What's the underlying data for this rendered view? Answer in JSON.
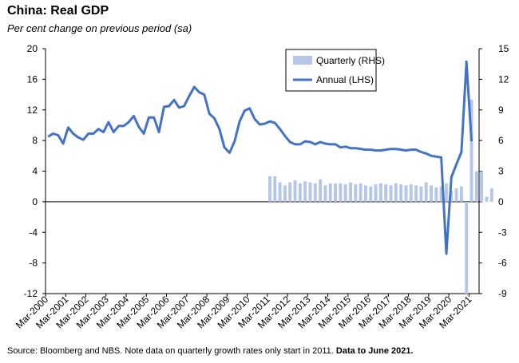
{
  "title": "China: Real GDP",
  "subtitle": "Per cent change on previous period (sa)",
  "source_text": "Source: Bloomberg and NBS.  Note data on quarterly growth rates only start in 2011.",
  "source_bold": "Data to June 2021.",
  "colors": {
    "annual": "#4472C4",
    "quarterly": "#B4C7E7"
  },
  "chart_data": {
    "type": "bar+line",
    "title": "China: Real GDP",
    "subtitle": "Per cent change on previous period (sa)",
    "x_tick_labels": [
      "Mar-2000",
      "Mar-2001",
      "Mar-2002",
      "Mar-2003",
      "Mar-2004",
      "Mar-2005",
      "Mar-2006",
      "Mar-2007",
      "Mar-2008",
      "Mar-2009",
      "Mar-2010",
      "Mar-2011",
      "Mar-2012",
      "Mar-2013",
      "Mar-2014",
      "Mar-2015",
      "Mar-2016",
      "Mar-2017",
      "Mar-2018",
      "Mar-2019",
      "Mar-2020",
      "Mar-2021"
    ],
    "y_left": {
      "min": -12,
      "max": 20,
      "step": 4,
      "ticks": [
        "-12",
        "-8",
        "-4",
        "0",
        "4",
        "8",
        "12",
        "16",
        "20"
      ]
    },
    "y_right": {
      "min": -9,
      "max": 15,
      "step": 3,
      "ticks": [
        "-9",
        "-6",
        "-3",
        "0",
        "3",
        "6",
        "9",
        "12",
        "15"
      ]
    },
    "legend": {
      "position": "top-center",
      "entries": [
        "Quarterly (RHS)",
        "Annual (LHS)"
      ]
    },
    "grid": false,
    "series": [
      {
        "name": "Annual (LHS)",
        "axis": "left",
        "kind": "line",
        "start": "2000Q1",
        "values": [
          8.5,
          8.9,
          8.7,
          7.6,
          9.7,
          8.9,
          8.4,
          8.1,
          8.9,
          8.9,
          9.5,
          9.1,
          10.4,
          9.1,
          9.9,
          9.9,
          10.4,
          11.2,
          9.8,
          8.9,
          11.0,
          11.0,
          9.1,
          12.4,
          12.5,
          13.3,
          12.3,
          12.5,
          13.8,
          15.0,
          14.3,
          14.0,
          11.5,
          10.9,
          9.5,
          7.1,
          6.4,
          7.9,
          10.5,
          11.9,
          12.2,
          10.8,
          10.1,
          10.2,
          10.5,
          10.3,
          9.5,
          8.6,
          7.8,
          7.5,
          7.5,
          7.9,
          7.8,
          7.5,
          7.8,
          7.6,
          7.5,
          7.5,
          7.1,
          7.2,
          7.0,
          7.0,
          6.9,
          6.8,
          6.8,
          6.7,
          6.7,
          6.8,
          6.9,
          6.9,
          6.8,
          6.7,
          6.8,
          6.8,
          6.5,
          6.3,
          6.0,
          5.9,
          5.8,
          -6.8,
          3.2,
          4.9,
          6.5,
          18.3,
          7.9
        ]
      },
      {
        "name": "Quarterly (RHS)",
        "axis": "right",
        "kind": "bar",
        "start": "2011Q1",
        "values": [
          2.5,
          2.5,
          1.9,
          1.6,
          1.9,
          2.1,
          1.8,
          2.0,
          1.9,
          1.8,
          2.2,
          1.6,
          1.8,
          1.8,
          1.8,
          1.7,
          1.9,
          1.7,
          1.8,
          1.6,
          1.5,
          1.7,
          1.8,
          1.7,
          1.6,
          1.8,
          1.7,
          1.6,
          1.7,
          1.6,
          1.5,
          1.9,
          1.6,
          1.4,
          1.5,
          1.8,
          1.1,
          1.3,
          1.5,
          -9.0,
          10.0,
          3.0,
          3.0,
          0.5,
          1.3
        ]
      }
    ]
  }
}
